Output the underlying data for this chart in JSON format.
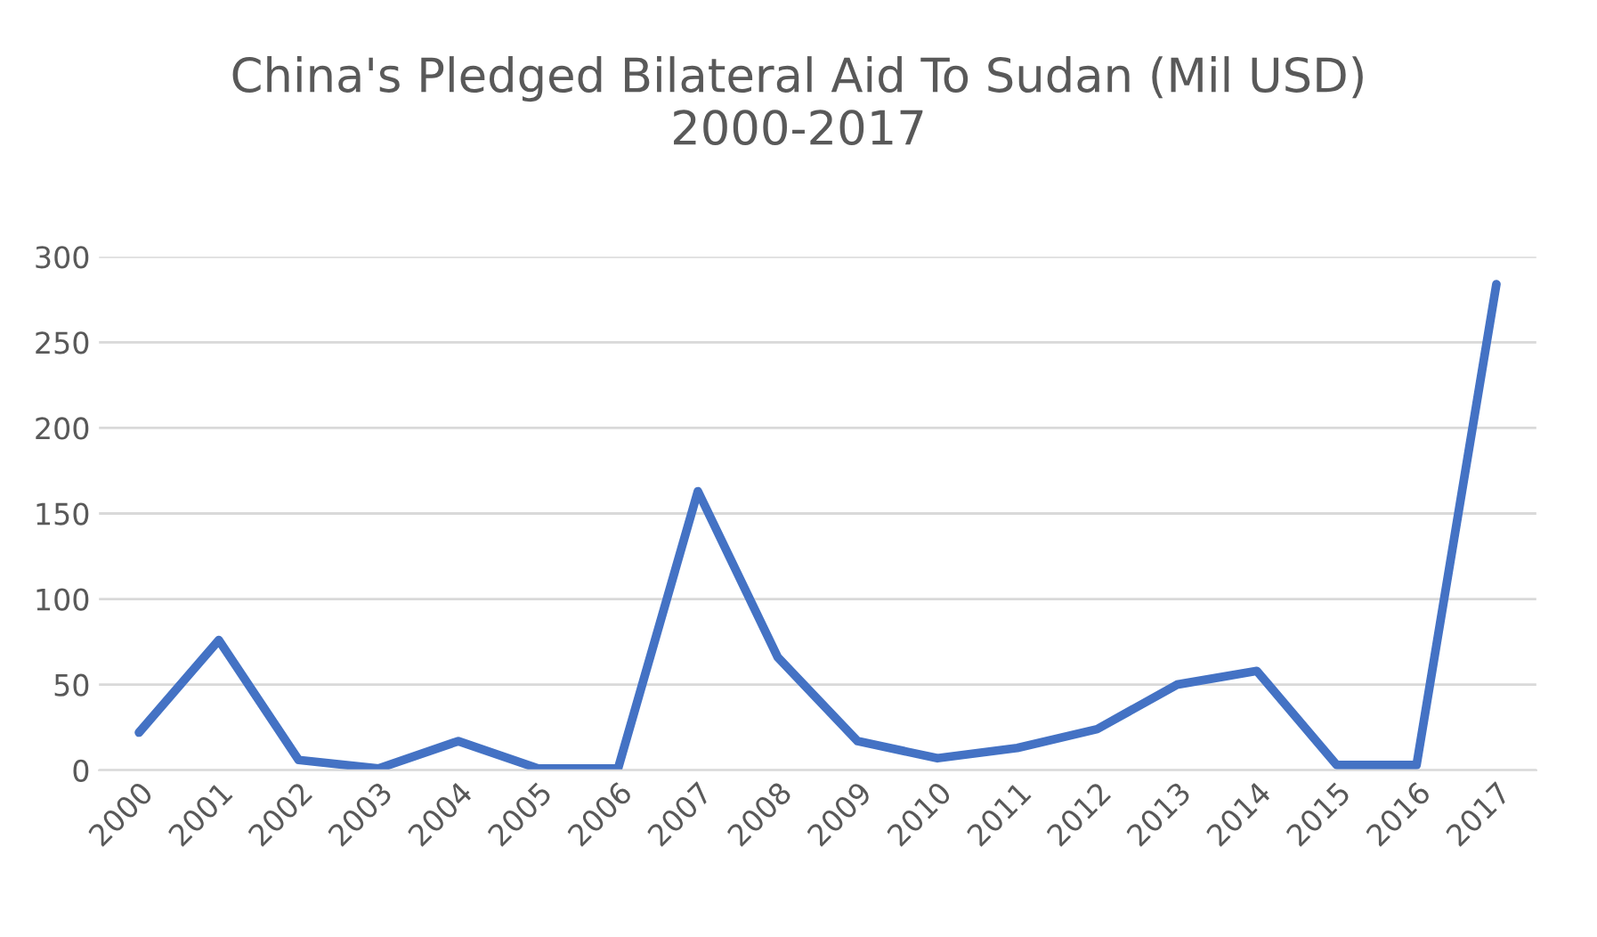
{
  "chart_data": {
    "type": "line",
    "title": "China's Pledged Bilateral Aid To Sudan (Mil USD)\n2000-2017",
    "categories": [
      "2000",
      "2001",
      "2002",
      "2003",
      "2004",
      "2005",
      "2006",
      "2007",
      "2008",
      "2009",
      "2010",
      "2011",
      "2012",
      "2013",
      "2014",
      "2015",
      "2016",
      "2017"
    ],
    "series": [
      {
        "color": "#4472c4",
        "values": [
          22,
          76,
          6,
          1,
          17,
          1,
          1,
          163,
          66,
          17,
          7,
          13,
          24,
          50,
          58,
          3,
          3,
          284
        ]
      }
    ],
    "ylim": [
      0,
      300
    ],
    "yticks": [
      0,
      50,
      100,
      150,
      200,
      250,
      300
    ],
    "grid": "y",
    "marker": "none",
    "line_style": "solid"
  }
}
